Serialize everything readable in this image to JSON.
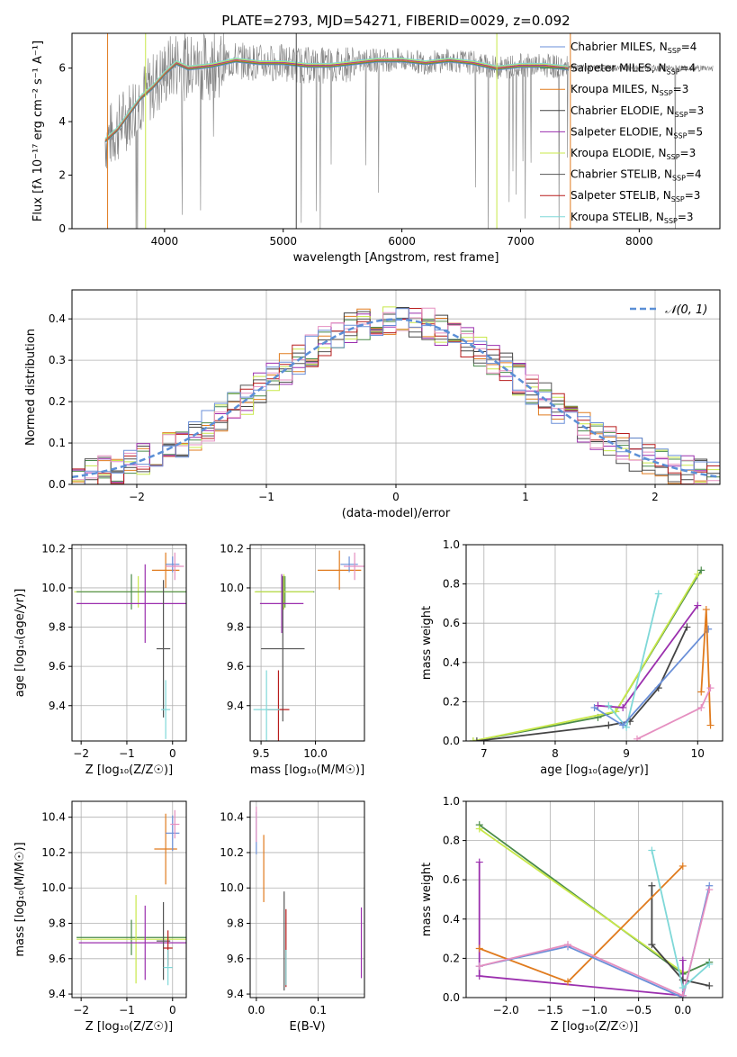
{
  "title": "PLATE=2793, MJD=54271, FIBERID=0029, z=0.092",
  "colors": {
    "chabrier_miles": "#6a8fd8",
    "salpeter_miles": "#4a8a4a",
    "kroupa_miles": "#e07b1e",
    "chabrier_elodie": "#444444",
    "salpeter_elodie": "#9b2fae",
    "kroupa_elodie": "#c8e84a",
    "chabrier_stelib": "#555555",
    "salpeter_stelib": "#b81c1c",
    "kroupa_stelib": "#7fd8d8",
    "pink": "#e58fc0",
    "gray_data": "#808080",
    "gauss": "#5b8fd6"
  },
  "legend": [
    {
      "label": "Chabrier MILES, N",
      "sub": "SSP",
      "val": "=4",
      "color": "chabrier_miles"
    },
    {
      "label": "Salpeter MILES, N",
      "sub": "SSP",
      "val": "=4",
      "color": "salpeter_miles"
    },
    {
      "label": "Kroupa MILES, N",
      "sub": "SSP",
      "val": "=3",
      "color": "kroupa_miles"
    },
    {
      "label": "Chabrier ELODIE, N",
      "sub": "SSP",
      "val": "=3",
      "color": "chabrier_elodie"
    },
    {
      "label": "Salpeter ELODIE, N",
      "sub": "SSP",
      "val": "=5",
      "color": "salpeter_elodie"
    },
    {
      "label": "Kroupa ELODIE, N",
      "sub": "SSP",
      "val": "=3",
      "color": "kroupa_elodie"
    },
    {
      "label": "Chabrier STELIB, N",
      "sub": "SSP",
      "val": "=4",
      "color": "chabrier_stelib"
    },
    {
      "label": "Salpeter STELIB, N",
      "sub": "SSP",
      "val": "=3",
      "color": "salpeter_stelib"
    },
    {
      "label": "Kroupa STELIB, N",
      "sub": "SSP",
      "val": "=3",
      "color": "kroupa_stelib"
    }
  ],
  "chart_data": [
    {
      "id": "spectrum",
      "type": "line",
      "xlabel": "wavelength [Angstrom, rest frame]",
      "ylabel": "Flux [fλ 10⁻¹⁷ erg cm⁻² s⁻¹ A⁻¹]",
      "xlim": [
        3220,
        8680
      ],
      "ylim": [
        0,
        7.3
      ],
      "xticks": [
        4000,
        5000,
        6000,
        7000,
        8000
      ],
      "yticks": [
        0,
        2,
        4,
        6
      ],
      "model_curve": {
        "x": [
          3500,
          3600,
          3700,
          3800,
          3900,
          4000,
          4100,
          4200,
          4400,
          4600,
          4800,
          5000,
          5200,
          5400,
          5600,
          5800,
          6000,
          6200,
          6400,
          6600,
          6800,
          7000,
          7200,
          7400
        ],
        "y": [
          3.3,
          3.7,
          4.3,
          4.9,
          5.3,
          5.8,
          6.2,
          6.0,
          6.1,
          6.3,
          6.2,
          6.2,
          6.1,
          6.1,
          6.2,
          6.3,
          6.3,
          6.2,
          6.3,
          6.2,
          6.0,
          6.1,
          6.1,
          6.0
        ]
      }
    },
    {
      "id": "residuals",
      "type": "line",
      "xlabel": "(data-model)/error",
      "ylabel": "Normed distribution",
      "xlim": [
        -2.5,
        2.5
      ],
      "ylim": [
        0,
        0.47
      ],
      "xticks": [
        -2,
        -1,
        0,
        1,
        2
      ],
      "yticks": [
        0.0,
        0.1,
        0.2,
        0.3,
        0.4
      ],
      "legend_label": "𝒩(0, 1)",
      "bin_width": 0.1
    },
    {
      "id": "age_vs_Z",
      "type": "scatter",
      "xlabel": "Z [log₁₀(Z/Z☉)]",
      "ylabel": "age  [log₁₀(age/yr)]",
      "xlim": [
        -2.2,
        0.3
      ],
      "ylim": [
        9.22,
        10.22
      ],
      "xticks": [
        -2,
        -1,
        0
      ],
      "yticks": [
        9.4,
        9.6,
        9.8,
        10.0,
        10.2
      ],
      "points": [
        {
          "x": -0.75,
          "y": 9.98,
          "xerr": 1.4,
          "yerr": 0.08,
          "c": "kroupa_elodie"
        },
        {
          "x": -0.9,
          "y": 9.98,
          "xerr": 1.2,
          "yerr": 0.09,
          "c": "salpeter_miles"
        },
        {
          "x": -0.6,
          "y": 9.92,
          "xerr": 1.5,
          "yerr": 0.2,
          "c": "salpeter_elodie"
        },
        {
          "x": -0.15,
          "y": 10.09,
          "xerr": 0.3,
          "yerr": 0.09,
          "c": "kroupa_miles"
        },
        {
          "x": 0.0,
          "y": 10.12,
          "xerr": 0.15,
          "yerr": 0.04,
          "c": "chabrier_miles"
        },
        {
          "x": 0.05,
          "y": 10.11,
          "xerr": 0.2,
          "yerr": 0.07,
          "c": "pink"
        },
        {
          "x": -0.2,
          "y": 9.69,
          "xerr": 0.15,
          "yerr": 0.35,
          "c": "chabrier_stelib"
        },
        {
          "x": -0.15,
          "y": 9.38,
          "xerr": 0.1,
          "yerr": 0.15,
          "c": "kroupa_stelib"
        }
      ]
    },
    {
      "id": "age_vs_mass",
      "type": "scatter",
      "xlabel": "mass [log₁₀(M/M☉)]",
      "ylabel": "",
      "xlim": [
        9.4,
        10.45
      ],
      "ylim": [
        9.22,
        10.22
      ],
      "xticks": [
        9.5,
        10.0
      ],
      "yticks": [
        9.4,
        9.6,
        9.8,
        10.0,
        10.2
      ],
      "points": [
        {
          "x": 9.72,
          "y": 9.98,
          "xerr": 0.27,
          "yerr": 0.08,
          "c": "salpeter_miles"
        },
        {
          "x": 9.71,
          "y": 9.98,
          "xerr": 0.27,
          "yerr": 0.09,
          "c": "kroupa_elodie"
        },
        {
          "x": 9.69,
          "y": 9.92,
          "xerr": 0.2,
          "yerr": 0.15,
          "c": "salpeter_elodie"
        },
        {
          "x": 10.22,
          "y": 10.09,
          "xerr": 0.2,
          "yerr": 0.1,
          "c": "kroupa_miles"
        },
        {
          "x": 10.31,
          "y": 10.12,
          "xerr": 0.08,
          "yerr": 0.04,
          "c": "chabrier_miles"
        },
        {
          "x": 10.36,
          "y": 10.11,
          "xerr": 0.1,
          "yerr": 0.07,
          "c": "pink"
        },
        {
          "x": 9.7,
          "y": 9.69,
          "xerr": 0.2,
          "yerr": 0.37,
          "c": "chabrier_stelib"
        },
        {
          "x": 9.66,
          "y": 9.38,
          "xerr": 0.1,
          "yerr": 0.2,
          "c": "salpeter_stelib"
        },
        {
          "x": 9.55,
          "y": 9.38,
          "xerr": 0.12,
          "yerr": 0.2,
          "c": "kroupa_stelib"
        }
      ]
    },
    {
      "id": "mass_weight_vs_age",
      "type": "line",
      "xlabel": "age  [log₁₀(age/yr)]",
      "ylabel": "mass weight",
      "xlim": [
        6.75,
        10.35
      ],
      "ylim": [
        0,
        1.0
      ],
      "xticks": [
        7,
        8,
        9,
        10
      ],
      "yticks": [
        0.0,
        0.2,
        0.4,
        0.6,
        0.8,
        1.0
      ],
      "series": [
        {
          "c": "salpeter_miles",
          "x": [
            6.85,
            8.6,
            8.85,
            10.05
          ],
          "y": [
            0.0,
            0.12,
            0.15,
            0.87
          ]
        },
        {
          "c": "kroupa_elodie",
          "x": [
            6.85,
            8.85,
            10.0
          ],
          "y": [
            0.0,
            0.15,
            0.85
          ]
        },
        {
          "c": "chabrier_elodie",
          "x": [
            6.9,
            8.75,
            9.05,
            9.45,
            9.85
          ],
          "y": [
            0.0,
            0.08,
            0.1,
            0.27,
            0.58
          ]
        },
        {
          "c": "salpeter_elodie",
          "x": [
            8.6,
            8.95,
            10.0
          ],
          "y": [
            0.18,
            0.17,
            0.69
          ]
        },
        {
          "c": "kroupa_stelib",
          "x": [
            8.75,
            9.0,
            9.45
          ],
          "y": [
            0.18,
            0.07,
            0.75
          ]
        },
        {
          "c": "chabrier_miles",
          "x": [
            8.55,
            8.95,
            10.15
          ],
          "y": [
            0.17,
            0.08,
            0.57
          ]
        },
        {
          "c": "kroupa_miles",
          "x": [
            10.05,
            10.12,
            10.18
          ],
          "y": [
            0.25,
            0.67,
            0.08
          ]
        },
        {
          "c": "pink",
          "x": [
            9.15,
            10.05,
            10.18
          ],
          "y": [
            0.01,
            0.17,
            0.27
          ]
        }
      ]
    },
    {
      "id": "mass_vs_Z",
      "type": "scatter",
      "xlabel": "Z [log₁₀(Z/Z☉)]",
      "ylabel": "mass [log₁₀(M/M☉)]",
      "xlim": [
        -2.2,
        0.3
      ],
      "ylim": [
        9.38,
        10.49
      ],
      "xticks": [
        -2,
        -1,
        0
      ],
      "yticks": [
        9.4,
        9.6,
        9.8,
        10.0,
        10.2,
        10.4
      ],
      "points": [
        {
          "x": -0.9,
          "y": 9.72,
          "xerr": 1.2,
          "yerr": 0.1,
          "c": "salpeter_miles"
        },
        {
          "x": -0.8,
          "y": 9.71,
          "xerr": 1.3,
          "yerr": 0.25,
          "c": "kroupa_elodie"
        },
        {
          "x": -0.6,
          "y": 9.69,
          "xerr": 1.45,
          "yerr": 0.21,
          "c": "salpeter_elodie"
        },
        {
          "x": -0.15,
          "y": 10.22,
          "xerr": 0.25,
          "yerr": 0.2,
          "c": "kroupa_miles"
        },
        {
          "x": 0.0,
          "y": 10.31,
          "xerr": 0.15,
          "yerr": 0.1,
          "c": "chabrier_miles"
        },
        {
          "x": 0.05,
          "y": 10.36,
          "xerr": 0.1,
          "yerr": 0.08,
          "c": "pink"
        },
        {
          "x": -0.2,
          "y": 9.7,
          "xerr": 0.15,
          "yerr": 0.22,
          "c": "chabrier_stelib"
        },
        {
          "x": -0.1,
          "y": 9.66,
          "xerr": 0.1,
          "yerr": 0.1,
          "c": "salpeter_stelib"
        },
        {
          "x": -0.1,
          "y": 9.55,
          "xerr": 0.1,
          "yerr": 0.1,
          "c": "kroupa_stelib"
        }
      ]
    },
    {
      "id": "mass_vs_ebv",
      "type": "scatter",
      "xlabel": "E(B-V)",
      "ylabel": "",
      "xlim": [
        -0.01,
        0.175
      ],
      "ylim": [
        9.38,
        10.49
      ],
      "xticks": [
        0.0,
        0.1
      ],
      "yticks": [
        9.4,
        9.6,
        9.8,
        10.0,
        10.2,
        10.4
      ],
      "points": [
        {
          "x": 0.0,
          "y": 10.31,
          "yerr": 0.12,
          "c": "chabrier_miles"
        },
        {
          "x": 0.0,
          "y": 10.36,
          "yerr": 0.1,
          "c": "pink"
        },
        {
          "x": 0.012,
          "y": 10.11,
          "yerr": 0.19,
          "c": "kroupa_miles"
        },
        {
          "x": 0.045,
          "y": 9.7,
          "yerr": 0.28,
          "c": "chabrier_stelib"
        },
        {
          "x": 0.048,
          "y": 9.66,
          "yerr": 0.22,
          "c": "salpeter_stelib"
        },
        {
          "x": 0.048,
          "y": 9.55,
          "yerr": 0.1,
          "c": "kroupa_stelib"
        },
        {
          "x": 0.17,
          "y": 9.69,
          "yerr": 0.2,
          "c": "salpeter_elodie"
        }
      ]
    },
    {
      "id": "mass_weight_vs_Z",
      "type": "line",
      "xlabel": "Z [log₁₀(Z/Z☉)]",
      "ylabel": "mass weight",
      "xlim": [
        -2.45,
        0.45
      ],
      "ylim": [
        0,
        1.0
      ],
      "xticks": [
        -2.0,
        -1.5,
        -1.0,
        -0.5,
        0.0
      ],
      "yticks": [
        0.0,
        0.2,
        0.4,
        0.6,
        0.8,
        1.0
      ],
      "series": [
        {
          "c": "salpeter_miles",
          "x": [
            -2.3,
            0.0,
            0.3
          ],
          "y": [
            0.88,
            0.12,
            0.18
          ]
        },
        {
          "c": "kroupa_elodie",
          "x": [
            -2.3,
            0.0
          ],
          "y": [
            0.86,
            0.13
          ]
        },
        {
          "c": "salpeter_elodie",
          "x": [
            -2.3,
            -2.3,
            0.0,
            0.0
          ],
          "y": [
            0.69,
            0.11,
            0.01,
            0.19
          ]
        },
        {
          "c": "chabrier_elodie",
          "x": [
            -0.35,
            -0.35,
            0.0,
            0.3
          ],
          "y": [
            0.57,
            0.27,
            0.09,
            0.06
          ]
        },
        {
          "c": "kroupa_miles",
          "x": [
            -2.3,
            -1.3,
            0.0
          ],
          "y": [
            0.25,
            0.08,
            0.67
          ]
        },
        {
          "c": "chabrier_miles",
          "x": [
            -2.3,
            -1.3,
            0.0,
            0.3
          ],
          "y": [
            0.16,
            0.26,
            0.0,
            0.57
          ]
        },
        {
          "c": "pink",
          "x": [
            -2.3,
            -1.3,
            0.0,
            0.3
          ],
          "y": [
            0.16,
            0.27,
            0.01,
            0.55
          ]
        },
        {
          "c": "kroupa_stelib",
          "x": [
            -0.35,
            0.0,
            0.3
          ],
          "y": [
            0.75,
            0.05,
            0.17
          ]
        }
      ]
    }
  ]
}
